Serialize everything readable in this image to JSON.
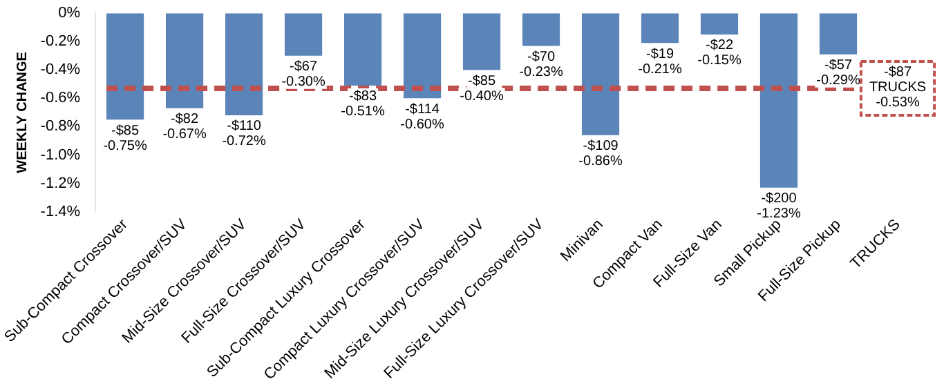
{
  "chart_data": {
    "type": "bar",
    "ylabel": "WEEKLY CHANGE",
    "categories": [
      "Sub-Compact Crossover",
      "Compact Crossover/SUV",
      "Mid-Size Crossover/SUV",
      "Full-Size Crossover/SUV",
      "Sub-Compact Luxury Crossover",
      "Compact Luxury Crossover/SUV",
      "Mid-Size Luxury Crossover/SUV",
      "Full-Size Luxury Crossover/SUV",
      "Minivan",
      "Compact Van",
      "Full-Size Van",
      "Small Pickup",
      "Full-Size Pickup",
      "TRUCKS"
    ],
    "values": [
      -0.75,
      -0.67,
      -0.72,
      -0.3,
      -0.51,
      -0.6,
      -0.4,
      -0.23,
      -0.86,
      -0.21,
      -0.15,
      -1.23,
      -0.29,
      null
    ],
    "value_labels": [
      "-$85\n-0.75%",
      "-$82\n-0.67%",
      "-$110\n-0.72%",
      "-$67\n-0.30%",
      "-$83\n-0.51%",
      "-$114\n-0.60%",
      "-$85\n-0.40%",
      "-$70\n-0.23%",
      "-$109\n-0.86%",
      "-$19\n-0.21%",
      "-$22\n-0.15%",
      "-$200\n-1.23%",
      "-$57\n-0.29%",
      null
    ],
    "color": "#5b85b8",
    "ylim": [
      -1.4,
      0
    ],
    "yticks": [
      {
        "value": 0,
        "label": "0%"
      },
      {
        "value": -0.2,
        "label": "-0.2%"
      },
      {
        "value": -0.4,
        "label": "-0.4%"
      },
      {
        "value": -0.6,
        "label": "-0.6%"
      },
      {
        "value": -0.8,
        "label": "-0.8%"
      },
      {
        "value": -1.0,
        "label": "-1.0%"
      },
      {
        "value": -1.2,
        "label": "-1.2%"
      },
      {
        "value": -1.4,
        "label": "-1.4%"
      }
    ],
    "ref_lines": [
      {
        "axis": "y",
        "value": -0.53,
        "color": "#c0504d",
        "line_style": "dashed"
      }
    ],
    "annotations": [
      {
        "text": "-$87\nTRUCKS\n-0.53%",
        "x": "TRUCKS",
        "y": -0.53
      }
    ],
    "grid": false,
    "legend": false
  }
}
